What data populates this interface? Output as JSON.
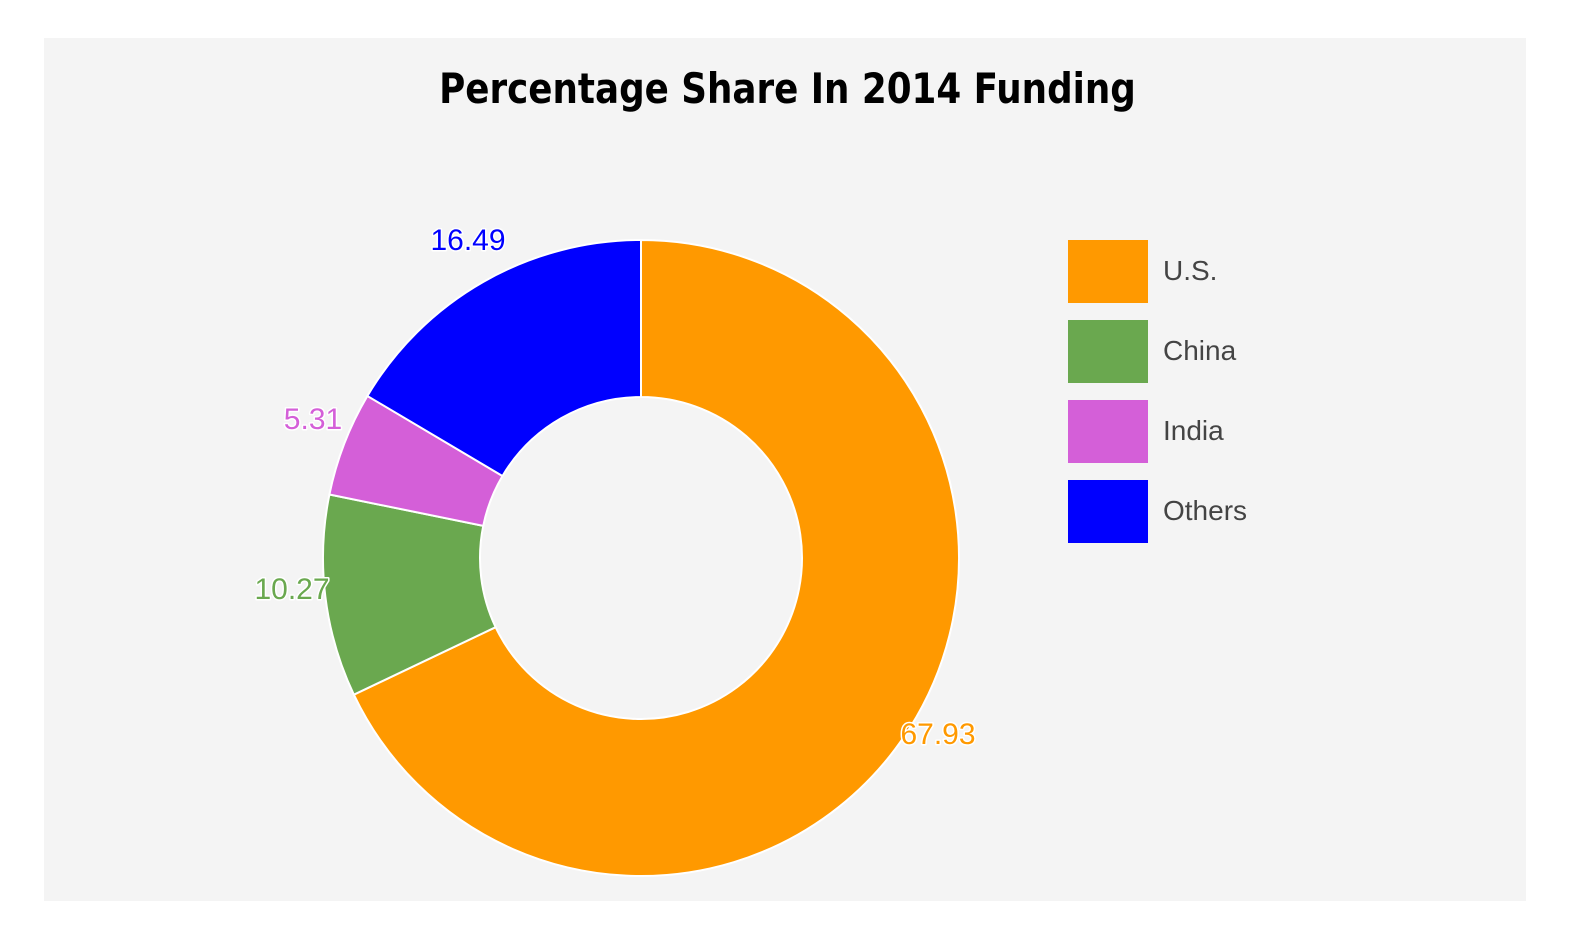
{
  "chart_data": {
    "type": "pie",
    "style": "donut",
    "title": "Percentage Share In 2014 Funding",
    "slices": [
      {
        "name": "U.S.",
        "value": 67.93,
        "label": "67.93",
        "color": "#ff9900"
      },
      {
        "name": "China",
        "value": 10.27,
        "label": "10.27",
        "color": "#6aa84f"
      },
      {
        "name": "India",
        "value": 5.31,
        "label": "5.31",
        "color": "#d45fd8"
      },
      {
        "name": "Others",
        "value": 16.49,
        "label": "16.49",
        "color": "#0000ff"
      }
    ],
    "legend_position": "right",
    "background_color": "#f4f4f4"
  }
}
